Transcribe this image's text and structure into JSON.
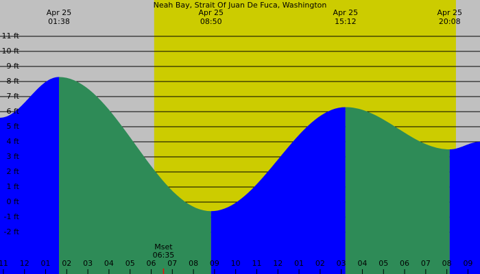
{
  "chart_data": {
    "type": "area",
    "title": "Neah Bay, Strait Of Juan De Fuca, Washington",
    "x": [
      -1.16,
      1.633,
      8.833,
      15.2,
      20.133,
      21.57
    ],
    "series": [
      {
        "values": [
          5.6,
          8.3,
          -0.6,
          6.3,
          3.5,
          4.0
        ],
        "rising_color": "#0000ff",
        "falling_color": "#2e8b57"
      }
    ],
    "extremes": [
      {
        "date": "Apr 25",
        "time": "01:38",
        "x": 1.633
      },
      {
        "date": "Apr 25",
        "time": "08:50",
        "x": 8.833
      },
      {
        "date": "Apr 25",
        "time": "15:12",
        "x": 15.2
      },
      {
        "date": "Apr 25",
        "time": "20:08",
        "x": 20.133
      }
    ],
    "annotations": [
      {
        "label": "Mset",
        "time": "06:35",
        "x": 6.583,
        "color": "#ff0000"
      }
    ],
    "daylight": [
      6.14,
      20.43
    ],
    "background_color": "#c0c0c0",
    "daylight_color": "#cccc00",
    "xlim": [
      -1.16,
      21.57
    ],
    "ylim": [
      -4.77,
      13.41
    ],
    "yticks": [
      {
        "value": -2,
        "label": "-2 ft"
      },
      {
        "value": -1,
        "label": "-1 ft"
      },
      {
        "value": 0,
        "label": "0 ft"
      },
      {
        "value": 1,
        "label": "1 ft"
      },
      {
        "value": 2,
        "label": "2 ft"
      },
      {
        "value": 3,
        "label": "3 ft"
      },
      {
        "value": 4,
        "label": "4 ft"
      },
      {
        "value": 5,
        "label": "5 ft"
      },
      {
        "value": 6,
        "label": "6 ft"
      },
      {
        "value": 7,
        "label": "7 ft"
      },
      {
        "value": 8,
        "label": "8 ft"
      },
      {
        "value": 9,
        "label": "9 ft"
      },
      {
        "value": 10,
        "label": "10 ft"
      },
      {
        "value": 11,
        "label": "11 ft"
      }
    ],
    "xticks": [
      {
        "value": -1,
        "label": "11"
      },
      {
        "value": 0,
        "label": "12"
      },
      {
        "value": 1,
        "label": "01"
      },
      {
        "value": 2,
        "label": "02"
      },
      {
        "value": 3,
        "label": "03"
      },
      {
        "value": 4,
        "label": "04"
      },
      {
        "value": 5,
        "label": "05"
      },
      {
        "value": 6,
        "label": "06"
      },
      {
        "value": 7,
        "label": "07"
      },
      {
        "value": 8,
        "label": "08"
      },
      {
        "value": 9,
        "label": "09"
      },
      {
        "value": 10,
        "label": "10"
      },
      {
        "value": 11,
        "label": "11"
      },
      {
        "value": 12,
        "label": "12"
      },
      {
        "value": 13,
        "label": "01"
      },
      {
        "value": 14,
        "label": "02"
      },
      {
        "value": 15,
        "label": "03"
      },
      {
        "value": 16,
        "label": "04"
      },
      {
        "value": 17,
        "label": "05"
      },
      {
        "value": 18,
        "label": "06"
      },
      {
        "value": 19,
        "label": "07"
      },
      {
        "value": 20,
        "label": "08"
      },
      {
        "value": 21,
        "label": "09"
      }
    ],
    "grid": true
  }
}
